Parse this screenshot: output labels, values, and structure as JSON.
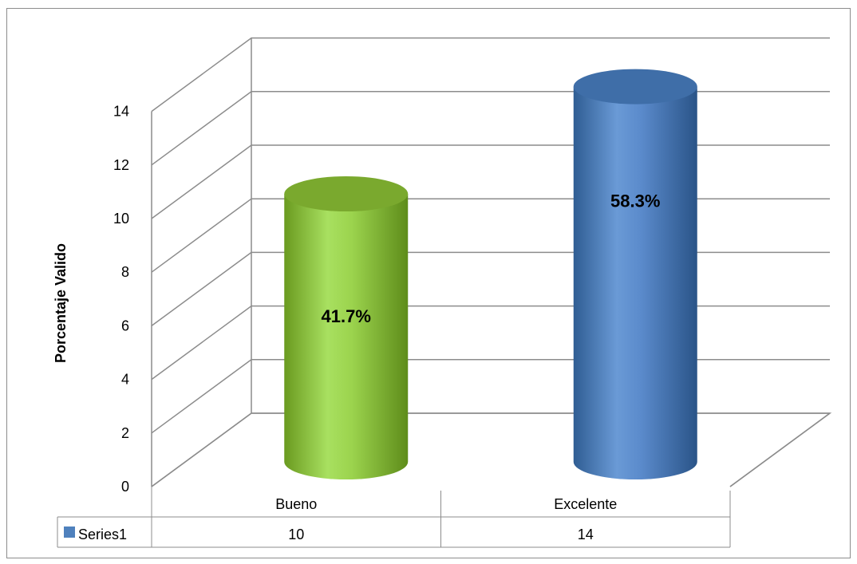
{
  "chart_data": {
    "type": "bar",
    "style": "3d-cylinder",
    "categories": [
      "Bueno",
      "Excelente"
    ],
    "series": [
      {
        "name": "Series1",
        "values": [
          10,
          14
        ],
        "data_labels": [
          "41.7%",
          "58.3%"
        ],
        "colors": [
          "#8fc93a",
          "#4a7ebb"
        ]
      }
    ],
    "title": "",
    "xlabel": "",
    "ylabel": "Porcentaje Valido",
    "ylim": [
      0,
      14
    ],
    "yticks": [
      0,
      2,
      4,
      6,
      8,
      10,
      12,
      14
    ],
    "grid": true,
    "legend": "data-table",
    "legend_color": "#4f81bd"
  }
}
